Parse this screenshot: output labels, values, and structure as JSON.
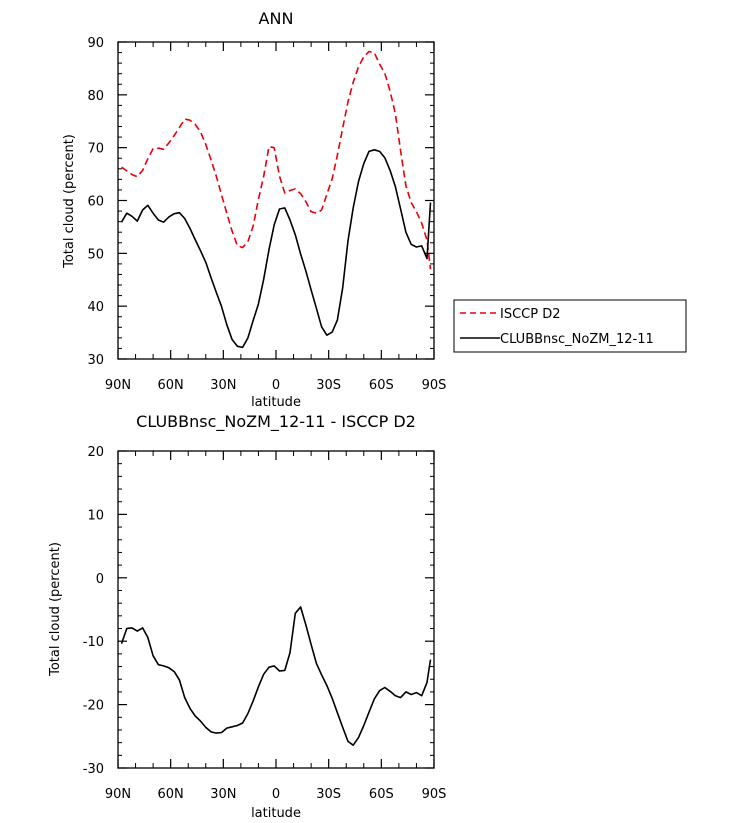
{
  "chart_data": [
    {
      "type": "line",
      "title": "ANN",
      "xlabel": "latitude",
      "ylabel": "Total cloud (percent)",
      "xlim": [
        90,
        -90
      ],
      "ylim": [
        30,
        90
      ],
      "x_ticks": [
        90,
        60,
        30,
        0,
        -30,
        -60,
        -90
      ],
      "x_tick_labels": [
        "90N",
        "60N",
        "30N",
        "0",
        "30S",
        "60S",
        "90S"
      ],
      "y_ticks": [
        30,
        40,
        50,
        60,
        70,
        80,
        90
      ],
      "y_tick_labels": [
        "30",
        "40",
        "50",
        "60",
        "70",
        "80",
        "90"
      ],
      "legend_position": "right",
      "series": [
        {
          "name": "ISCCP D2",
          "color": "#e8000b",
          "dash": "dashed",
          "x": [
            88,
            85,
            82,
            79,
            76,
            73,
            70,
            67,
            64,
            61,
            58,
            55,
            52,
            49,
            46,
            43,
            40,
            37,
            34,
            31,
            28,
            25,
            22,
            19,
            16,
            13,
            10,
            7,
            4,
            1,
            -2,
            -5,
            -8,
            -11,
            -14,
            -17,
            -20,
            -23,
            -26,
            -29,
            -32,
            -35,
            -38,
            -41,
            -44,
            -47,
            -50,
            -53,
            -56,
            -59,
            -62,
            -65,
            -68,
            -71,
            -74,
            -77,
            -80,
            -83,
            -86,
            -88
          ],
          "y": [
            66.3,
            65.6,
            64.9,
            64.5,
            65.7,
            67.9,
            69.8,
            69.9,
            69.7,
            70.9,
            72.3,
            73.8,
            75.4,
            75.2,
            74.4,
            73.0,
            70.6,
            67.7,
            64.6,
            61.0,
            57.6,
            54.2,
            51.4,
            51.1,
            52.2,
            55.2,
            60.2,
            64.6,
            70.2,
            70.0,
            64.6,
            61.4,
            61.9,
            62.2,
            61.3,
            59.8,
            57.9,
            57.6,
            58.2,
            61.2,
            64.1,
            68.6,
            73.7,
            78.7,
            82.4,
            85.3,
            87.2,
            88.2,
            88.0,
            85.8,
            84.1,
            80.7,
            76.4,
            69.4,
            62.8,
            59.6,
            57.9,
            55.7,
            52.5,
            47.0
          ]
        },
        {
          "name": "CLUBBnsc_NoZM_12-11",
          "color": "#000000",
          "dash": "solid",
          "x": [
            88,
            85,
            82,
            79,
            76,
            73,
            70,
            67,
            64,
            61,
            58,
            55,
            52,
            49,
            46,
            43,
            40,
            37,
            34,
            31,
            28,
            25,
            22,
            19,
            16,
            13,
            10,
            7,
            4,
            1,
            -2,
            -5,
            -8,
            -11,
            -14,
            -17,
            -20,
            -23,
            -26,
            -29,
            -32,
            -35,
            -38,
            -41,
            -44,
            -47,
            -50,
            -53,
            -56,
            -59,
            -62,
            -65,
            -68,
            -71,
            -74,
            -77,
            -80,
            -83,
            -86,
            -88
          ],
          "y": [
            55.9,
            57.6,
            57.0,
            56.1,
            58.2,
            59.1,
            57.6,
            56.3,
            55.9,
            56.9,
            57.5,
            57.7,
            56.6,
            54.7,
            52.6,
            50.5,
            48.3,
            45.4,
            42.6,
            39.9,
            36.5,
            33.7,
            32.4,
            32.2,
            34.0,
            37.3,
            40.4,
            45.1,
            50.7,
            55.4,
            58.4,
            58.6,
            56.3,
            53.5,
            49.9,
            46.7,
            43.1,
            39.6,
            36.1,
            34.5,
            35.1,
            37.4,
            43.5,
            52.4,
            58.6,
            63.6,
            67.0,
            69.3,
            69.6,
            69.3,
            68.1,
            65.7,
            62.6,
            58.4,
            54.0,
            51.7,
            51.2,
            51.4,
            49.0,
            59.6
          ]
        }
      ]
    },
    {
      "type": "line",
      "title": "CLUBBnsc_NoZM_12-11 - ISCCP D2",
      "xlabel": "latitude",
      "ylabel": "Total cloud (percent)",
      "xlim": [
        90,
        -90
      ],
      "ylim": [
        -30,
        20
      ],
      "x_ticks": [
        90,
        60,
        30,
        0,
        -30,
        -60,
        -90
      ],
      "x_tick_labels": [
        "90N",
        "60N",
        "30N",
        "0",
        "30S",
        "60S",
        "90S"
      ],
      "y_ticks": [
        -30,
        -20,
        -10,
        0,
        10,
        20
      ],
      "y_tick_labels": [
        "-30",
        "-20",
        "-10",
        "0",
        "10",
        "20"
      ],
      "series": [
        {
          "color": "#000000",
          "dash": "solid",
          "x": [
            88,
            85,
            82,
            79,
            76,
            73,
            70,
            67,
            64,
            61,
            58,
            55,
            52,
            49,
            46,
            43,
            40,
            37,
            34,
            31,
            28,
            25,
            22,
            19,
            16,
            13,
            10,
            7,
            4,
            1,
            -2,
            -5,
            -8,
            -11,
            -14,
            -17,
            -20,
            -23,
            -26,
            -29,
            -32,
            -35,
            -38,
            -41,
            -44,
            -47,
            -50,
            -53,
            -56,
            -59,
            -62,
            -65,
            -68,
            -71,
            -74,
            -77,
            -80,
            -83,
            -86,
            -88
          ],
          "y": [
            -10.4,
            -8.0,
            -7.9,
            -8.4,
            -7.9,
            -9.4,
            -12.3,
            -13.7,
            -13.9,
            -14.2,
            -14.8,
            -16.1,
            -18.9,
            -20.6,
            -21.8,
            -22.6,
            -23.6,
            -24.3,
            -24.5,
            -24.4,
            -23.7,
            -23.5,
            -23.3,
            -22.9,
            -21.4,
            -19.4,
            -17.2,
            -15.2,
            -14.1,
            -13.9,
            -14.7,
            -14.6,
            -11.8,
            -5.6,
            -4.6,
            -7.4,
            -10.5,
            -13.5,
            -15.3,
            -17.0,
            -19.0,
            -21.3,
            -23.6,
            -25.8,
            -26.4,
            -25.2,
            -23.3,
            -21.2,
            -19.1,
            -17.8,
            -17.3,
            -17.9,
            -18.6,
            -18.9,
            -18.0,
            -18.4,
            -18.1,
            -18.6,
            -16.5,
            -12.9
          ]
        }
      ]
    }
  ],
  "panels": [
    {
      "title": "ANN",
      "xlabel": "latitude",
      "ylabel": "Total cloud (percent)"
    },
    {
      "title": "CLUBBnsc_NoZM_12-11 - ISCCP D2",
      "xlabel": "latitude",
      "ylabel": "Total cloud (percent)"
    }
  ],
  "legend": {
    "entries": [
      "ISCCP D2",
      "CLUBBnsc_NoZM_12-11"
    ]
  },
  "colors": {
    "isccp": "#e8000b",
    "model": "#000000"
  }
}
